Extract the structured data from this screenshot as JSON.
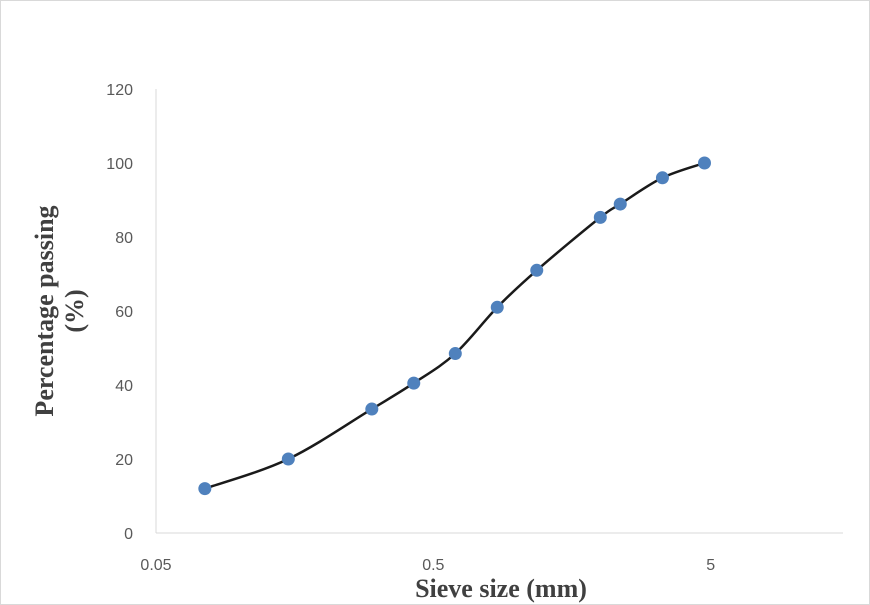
{
  "chart_data": {
    "type": "scatter",
    "title": "",
    "xlabel": "Sieve size (mm)",
    "ylabel_lines": [
      "Percentage passing",
      "(%)"
    ],
    "x_scale": "log",
    "xlim": [
      0.05,
      15
    ],
    "ylim": [
      0,
      120
    ],
    "x_ticks": [
      {
        "value": 0.05,
        "label": "0.05"
      },
      {
        "value": 0.5,
        "label": "0.5"
      },
      {
        "value": 5,
        "label": "5"
      }
    ],
    "y_ticks": [
      {
        "value": 0,
        "label": "0"
      },
      {
        "value": 20,
        "label": "20"
      },
      {
        "value": 40,
        "label": "40"
      },
      {
        "value": 60,
        "label": "60"
      },
      {
        "value": 80,
        "label": "80"
      },
      {
        "value": 100,
        "label": "100"
      },
      {
        "value": 120,
        "label": "120"
      }
    ],
    "grid": false,
    "legend": "none",
    "smooth_line": true,
    "line_color": "#1a1a1a",
    "marker_color": "#4f81bd",
    "series": [
      {
        "x": [
          0.075,
          0.15,
          0.3,
          0.425,
          0.6,
          0.85,
          1.18,
          2.0,
          2.36,
          3.35,
          4.75
        ],
        "y": [
          12,
          20,
          33.5,
          40.5,
          48.5,
          61,
          71,
          85.3,
          88.9,
          96,
          100
        ]
      }
    ]
  }
}
